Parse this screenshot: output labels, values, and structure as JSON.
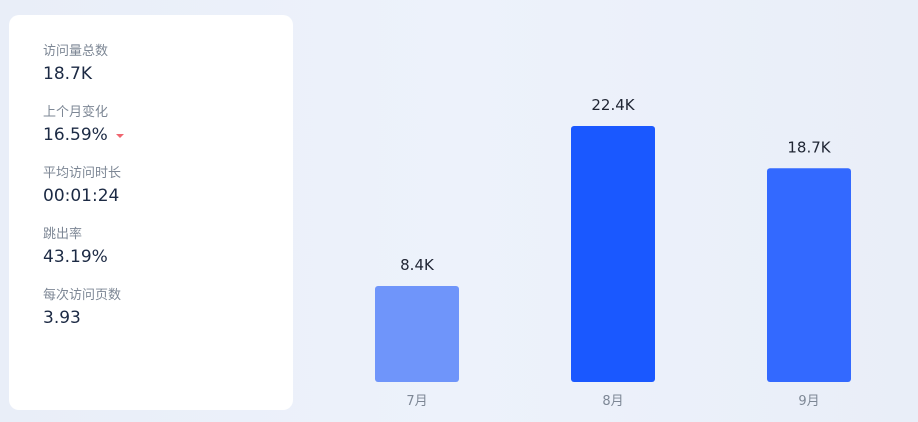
{
  "stats": [
    {
      "label": "访问量总数",
      "value": "18.7K"
    },
    {
      "label": "上个月变化",
      "value": "16.59%",
      "trend": "down",
      "trend_color": "#f0656f"
    },
    {
      "label": "平均访问时长",
      "value": "00:01:24"
    },
    {
      "label": "跳出率",
      "value": "43.19%"
    },
    {
      "label": "每次访问页数",
      "value": "3.93"
    }
  ],
  "chart_data": {
    "type": "bar",
    "categories": [
      "7月",
      "8月",
      "9月"
    ],
    "values": [
      8.4,
      22.4,
      18.7
    ],
    "data_labels": [
      "8.4K",
      "22.4K",
      "18.7K"
    ],
    "colors": [
      "#6f95fa",
      "#1a58ff",
      "#3369ff"
    ],
    "unit": "K",
    "ylim": [
      0,
      22.4
    ],
    "grid": false
  }
}
